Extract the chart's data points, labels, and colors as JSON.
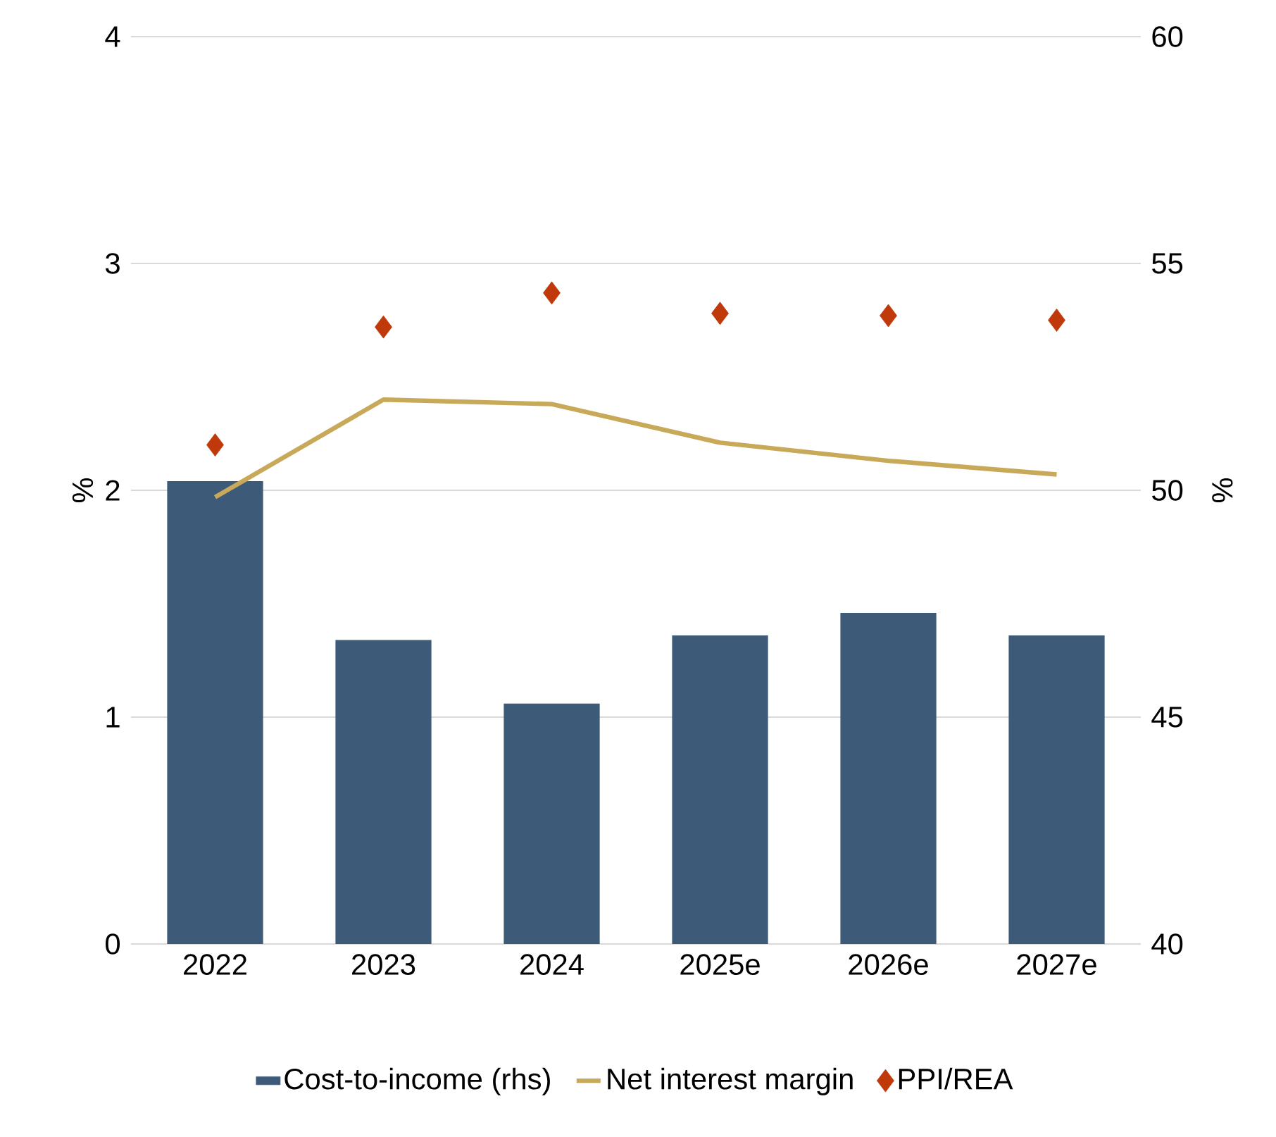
{
  "chart_data": {
    "type": "bar",
    "ylabel": "%",
    "y2label": "%",
    "categories": [
      "2022",
      "2023",
      "2024",
      "2025e",
      "2026e",
      "2027e"
    ],
    "series": [
      {
        "name": "Cost-to-income (rhs)",
        "axis": "y2",
        "color": "#3d5a78",
        "values": [
          50.2,
          46.7,
          45.3,
          46.8,
          47.3,
          46.8
        ]
      },
      {
        "name": "Net interest margin",
        "type": "line",
        "color": "#c8a95a",
        "marker": "none",
        "line_style": "solid",
        "values": [
          1.97,
          2.4,
          2.38,
          2.21,
          2.13,
          2.07
        ]
      },
      {
        "name": "PPI/REA",
        "type": "scatter",
        "color": "#c0390b",
        "marker": "diamond",
        "values": [
          2.2,
          2.72,
          2.87,
          2.78,
          2.77,
          2.75
        ]
      }
    ],
    "ylim": [
      0,
      4
    ],
    "yticks": [
      0,
      1,
      2,
      3,
      4
    ],
    "y2lim": [
      40,
      60
    ],
    "y2ticks": [
      40,
      45,
      50,
      55,
      60
    ],
    "grid": "y",
    "legend": "bottom"
  }
}
